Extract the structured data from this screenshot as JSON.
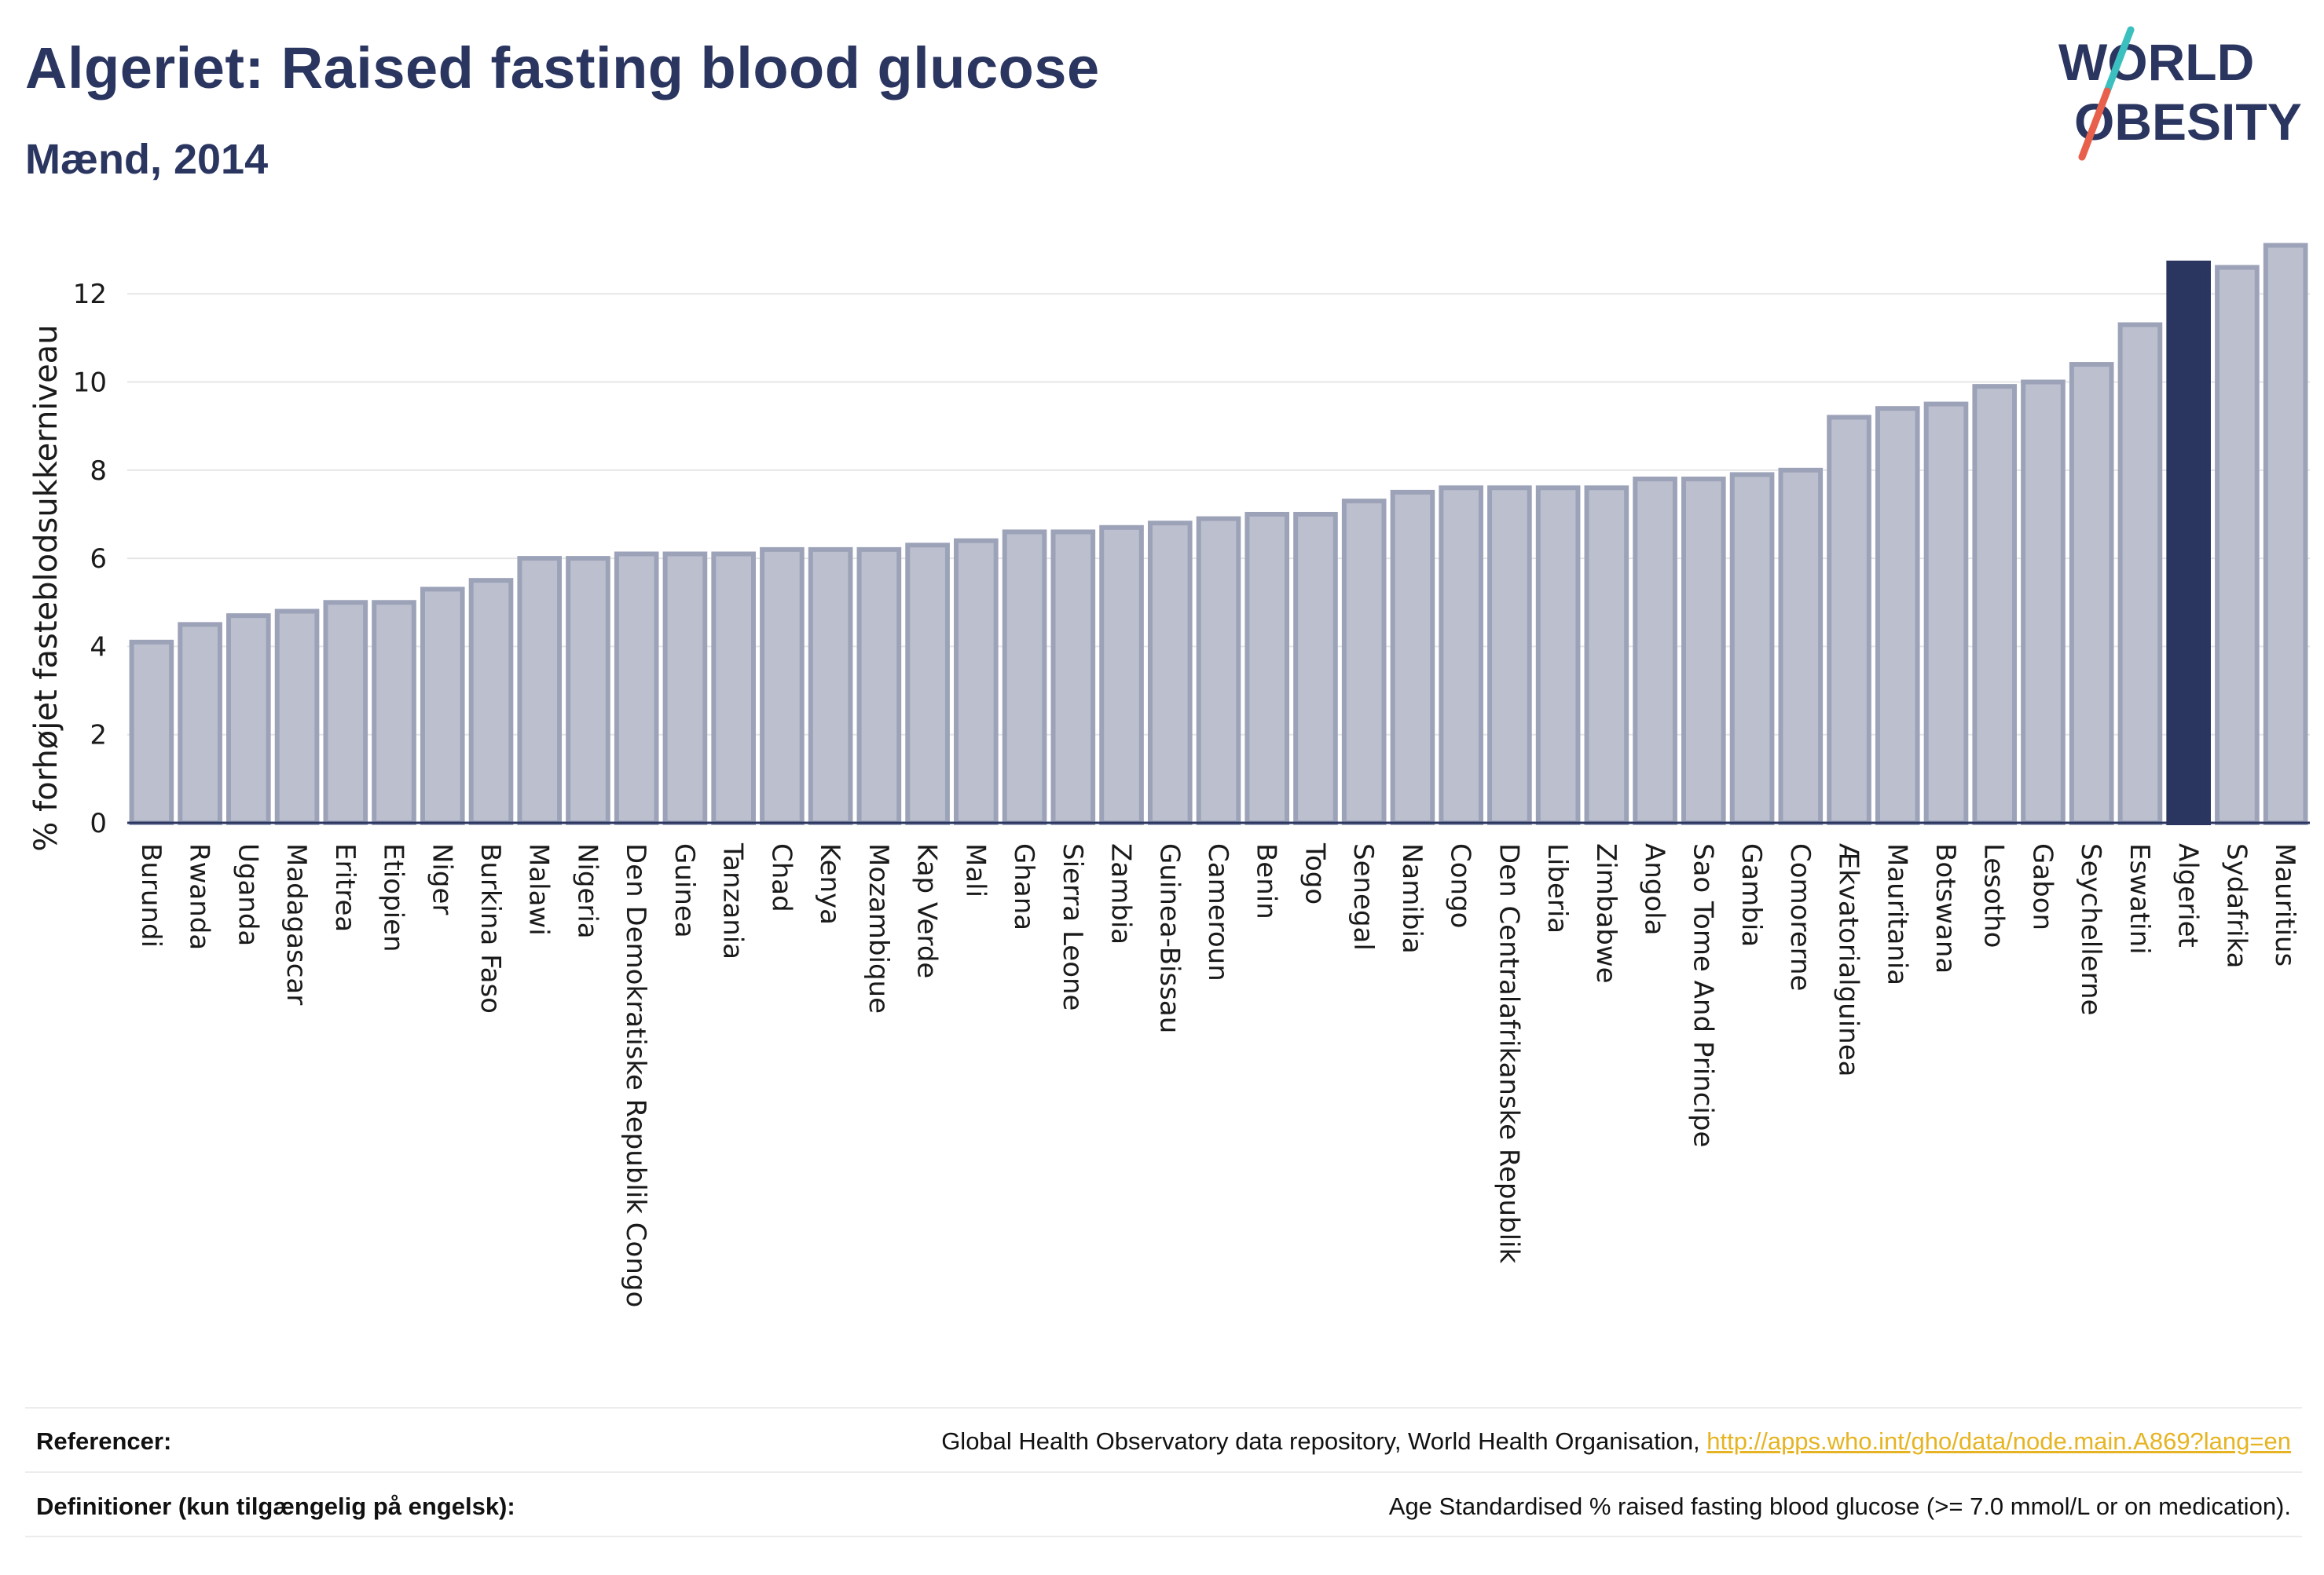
{
  "header": {
    "title": "Algeriet: Raised fasting blood glucose",
    "subtitle": "Mænd, 2014"
  },
  "logo": {
    "line1": "WORLD",
    "line2": "OBESITY",
    "colors": {
      "text": "#2a3560",
      "slash_top": "#3bbfbf",
      "slash_bottom": "#e8604c"
    }
  },
  "colors": {
    "bar_fill": "#bcc0ce",
    "bar_stroke": "#9ca2b8",
    "highlight": "#2a3560",
    "grid": "#e6e6e6",
    "axis": "#2a3560"
  },
  "chart_data": {
    "type": "bar",
    "ylabel": "% forhøjet fasteblodsukkerniveau",
    "xlabel": "",
    "ylim": [
      0,
      13.5
    ],
    "yticks": [
      0,
      2,
      4,
      6,
      8,
      10,
      12
    ],
    "grid": true,
    "highlight": "Algeriet",
    "categories": [
      "Burundi",
      "Rwanda",
      "Uganda",
      "Madagascar",
      "Eritrea",
      "Etiopien",
      "Niger",
      "Burkina Faso",
      "Malawi",
      "Nigeria",
      "Den Demokratiske Republik Congo",
      "Guinea",
      "Tanzania",
      "Chad",
      "Kenya",
      "Mozambique",
      "Kap Verde",
      "Mali",
      "Ghana",
      "Sierra Leone",
      "Zambia",
      "Guinea-Bissau",
      "Cameroun",
      "Benin",
      "Togo",
      "Senegal",
      "Namibia",
      "Congo",
      "Den Centralafrikanske Republik",
      "Liberia",
      "Zimbabwe",
      "Angola",
      "Sao Tome And Principe",
      "Gambia",
      "Comorerne",
      "Ækvatorialguinea",
      "Mauritania",
      "Botswana",
      "Lesotho",
      "Gabon",
      "Seychellerne",
      "Eswatini",
      "Algeriet",
      "Sydafrika",
      "Mauritius"
    ],
    "values": [
      4.1,
      4.5,
      4.7,
      4.8,
      5.0,
      5.0,
      5.3,
      5.5,
      6.0,
      6.0,
      6.1,
      6.1,
      6.1,
      6.2,
      6.2,
      6.2,
      6.3,
      6.4,
      6.6,
      6.6,
      6.7,
      6.8,
      6.9,
      7.0,
      7.0,
      7.3,
      7.5,
      7.6,
      7.6,
      7.6,
      7.6,
      7.8,
      7.8,
      7.9,
      8.0,
      9.2,
      9.4,
      9.5,
      9.9,
      10.0,
      10.4,
      11.3,
      12.7,
      12.6,
      13.1
    ]
  },
  "footer": {
    "references_label": "Referencer:",
    "references_text": "Global Health Observatory data repository, World Health Organisation, ",
    "references_link": "http://apps.who.int/gho/data/node.main.A869?lang=en",
    "definitions_label": "Definitioner (kun tilgængelig på engelsk):",
    "definitions_text": "Age Standardised % raised fasting blood glucose (>= 7.0 mmol/L or on medication)."
  }
}
